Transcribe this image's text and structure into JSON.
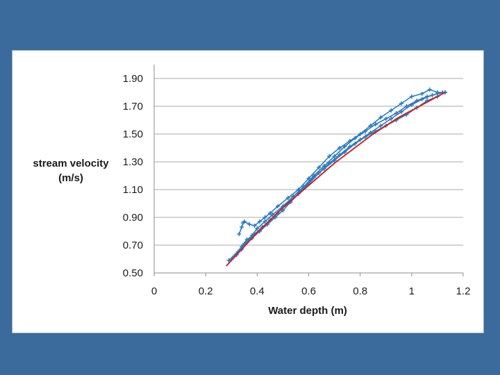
{
  "chart_data": {
    "type": "line",
    "xlabel": "Water depth (m)",
    "ylabel_lines": [
      "stream velocity",
      "(m/s)"
    ],
    "xlim": [
      0,
      1.2
    ],
    "ylim": [
      0.5,
      1.9
    ],
    "x_ticks": [
      0,
      0.2,
      0.4,
      0.6,
      0.8,
      1,
      1.2
    ],
    "x_tick_labels": [
      "0",
      "0.2",
      "0.4",
      "0.6",
      "0.8",
      "1",
      "1.2"
    ],
    "y_ticks": [
      0.5,
      0.7,
      0.9,
      1.1,
      1.3,
      1.5,
      1.7,
      1.9
    ],
    "y_tick_labels": [
      "0.50",
      "0.70",
      "0.90",
      "1.10",
      "1.30",
      "1.50",
      "1.70",
      "1.90"
    ],
    "grid": "horizontal",
    "colors": {
      "measured": "#2b7bbf",
      "fit": "#cc2222",
      "background": "#3a6b9c"
    },
    "series": [
      {
        "color": "#2b7bbf",
        "marker": "plus",
        "x": [
          0.29,
          0.31,
          0.33,
          0.35,
          0.38,
          0.41,
          0.44,
          0.47,
          0.5,
          0.53,
          0.56,
          0.6,
          0.64,
          0.68,
          0.72,
          0.76,
          0.8,
          0.84,
          0.88,
          0.92,
          0.96,
          1.0,
          1.04,
          1.08,
          1.12
        ],
        "y": [
          0.59,
          0.62,
          0.66,
          0.71,
          0.75,
          0.8,
          0.85,
          0.9,
          0.95,
          1.01,
          1.07,
          1.14,
          1.22,
          1.29,
          1.35,
          1.41,
          1.46,
          1.51,
          1.56,
          1.61,
          1.66,
          1.71,
          1.75,
          1.78,
          1.8
        ]
      },
      {
        "color": "#2b7bbf",
        "marker": "plus",
        "x": [
          0.3,
          0.32,
          0.34,
          0.36,
          0.39,
          0.42,
          0.45,
          0.48,
          0.51,
          0.54,
          0.58,
          0.62,
          0.66,
          0.7,
          0.74,
          0.78,
          0.82,
          0.86,
          0.9,
          0.94,
          0.98,
          1.02,
          1.06,
          1.1,
          1.13
        ],
        "y": [
          0.6,
          0.64,
          0.69,
          0.74,
          0.78,
          0.83,
          0.88,
          0.93,
          0.99,
          1.05,
          1.12,
          1.2,
          1.27,
          1.34,
          1.41,
          1.47,
          1.52,
          1.57,
          1.61,
          1.65,
          1.7,
          1.74,
          1.77,
          1.79,
          1.8
        ]
      },
      {
        "color": "#2b7bbf",
        "marker": "plus",
        "x": [
          0.33,
          0.34,
          0.345,
          0.35,
          0.37,
          0.39,
          0.41,
          0.43,
          0.45,
          0.48,
          0.52,
          0.56,
          0.6,
          0.64,
          0.68,
          0.72,
          0.76,
          0.8,
          0.84,
          0.88,
          0.92,
          0.96,
          1.0,
          1.04,
          1.07,
          1.1,
          1.13
        ],
        "y": [
          0.78,
          0.83,
          0.86,
          0.87,
          0.85,
          0.84,
          0.87,
          0.9,
          0.93,
          0.98,
          1.04,
          1.1,
          1.18,
          1.26,
          1.34,
          1.4,
          1.45,
          1.5,
          1.56,
          1.62,
          1.67,
          1.72,
          1.77,
          1.79,
          1.82,
          1.8,
          1.8
        ]
      },
      {
        "color": "#2b7bbf",
        "marker": "plus",
        "x": [
          0.32,
          0.34,
          0.36,
          0.38,
          0.4,
          0.43,
          0.46,
          0.5,
          0.54,
          0.58,
          0.62,
          0.66,
          0.7,
          0.74,
          0.78,
          0.82,
          0.86,
          0.9,
          0.94,
          0.98,
          1.02,
          1.06,
          1.1
        ],
        "y": [
          0.63,
          0.67,
          0.72,
          0.77,
          0.82,
          0.87,
          0.92,
          0.98,
          1.05,
          1.11,
          1.19,
          1.25,
          1.31,
          1.37,
          1.43,
          1.48,
          1.52,
          1.56,
          1.6,
          1.64,
          1.69,
          1.74,
          1.77
        ]
      },
      {
        "color": "#cc2222",
        "marker": "none",
        "x": [
          0.28,
          0.32,
          0.36,
          0.4,
          0.45,
          0.5,
          0.55,
          0.6,
          0.65,
          0.7,
          0.75,
          0.8,
          0.85,
          0.9,
          0.95,
          1.0,
          1.05,
          1.1,
          1.13
        ],
        "y": [
          0.55,
          0.63,
          0.71,
          0.79,
          0.88,
          0.97,
          1.05,
          1.13,
          1.21,
          1.29,
          1.36,
          1.43,
          1.5,
          1.56,
          1.62,
          1.67,
          1.72,
          1.77,
          1.8
        ]
      }
    ]
  }
}
